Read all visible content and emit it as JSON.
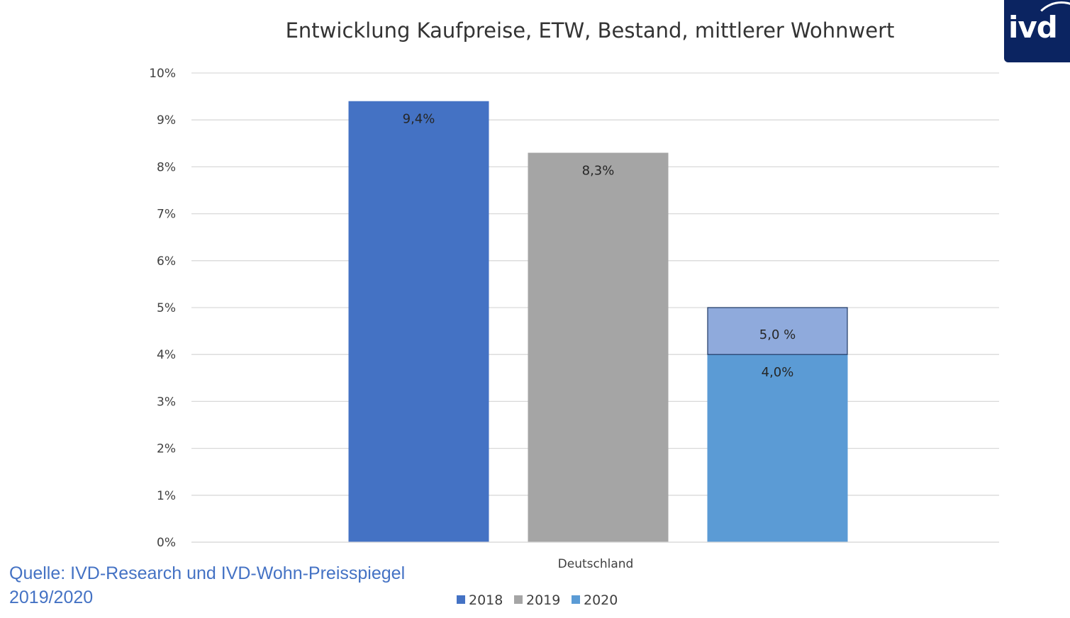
{
  "chart_data": {
    "type": "bar",
    "title": "Entwicklung Kaufpreise, ETW, Bestand, mittlerer Wohnwert",
    "categories": [
      "Deutschland"
    ],
    "series": [
      {
        "name": "2018",
        "values": [
          9.4
        ],
        "color": "#4472c4",
        "label": "9,4%"
      },
      {
        "name": "2019",
        "values": [
          8.3
        ],
        "color": "#a5a5a5",
        "label": "8,3%"
      },
      {
        "name": "2020",
        "values": [
          4.0
        ],
        "color": "#5b9bd5",
        "label": "4,0%",
        "extension": {
          "value": 5.0,
          "color": "#8faadc",
          "label": "5,0 %"
        }
      }
    ],
    "ylim": [
      0,
      10
    ],
    "yticks": [
      "0%",
      "1%",
      "2%",
      "3%",
      "4%",
      "5%",
      "6%",
      "7%",
      "8%",
      "9%",
      "10%"
    ],
    "grid": true,
    "legend": "bottom-center"
  },
  "source": {
    "line1": "Quelle: IVD-Research und IVD-Wohn-Preisspiegel",
    "line2": "2019/2020"
  },
  "logo": {
    "text": "ivd",
    "color": "#0b2461"
  }
}
